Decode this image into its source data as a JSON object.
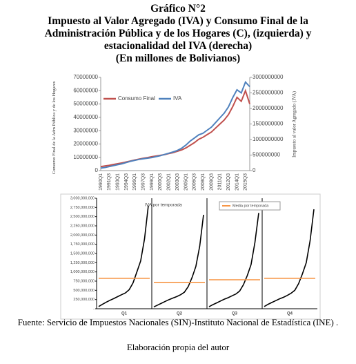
{
  "header": {
    "title": "Gráfico N°2",
    "subtitle": "Impuesto al Valor Agregado (IVA) y Consumo Final de la Administración Pública y de los Hogares (C), (izquierda) y estacionalidad del IVA (derecha)",
    "units": "(En millones de Bolivianos)"
  },
  "chart_data": [
    {
      "type": "line",
      "categories": [
        "1990Q1",
        null,
        "1991Q3",
        null,
        "1993Q1",
        null,
        "1994Q3",
        null,
        "1996Q1",
        null,
        "1997Q3",
        null,
        "1999Q1",
        null,
        "2000Q3",
        null,
        "2002Q1",
        null,
        "2003Q3",
        null,
        "2005Q1",
        null,
        "2006Q3",
        null,
        "2008Q1",
        null,
        "2009Q3",
        null,
        "2011Q1",
        null,
        "2012Q3",
        null,
        "2014Q1",
        null,
        "2015Q3",
        null
      ],
      "y_label": "Consumo Final de la Adm Pública y de los Hogares",
      "y2_label": "Impuesto al valor Agregado (IVA)",
      "ylim": [
        0,
        70000000
      ],
      "yticks": [
        0,
        10000000,
        20000000,
        30000000,
        40000000,
        50000000,
        60000000,
        70000000
      ],
      "y2lim": [
        0,
        3000000000
      ],
      "y2ticks": [
        0,
        500000000,
        1000000000,
        1500000000,
        2000000000,
        2500000000,
        3000000000
      ],
      "grid": false,
      "series": [
        {
          "name": "Consumo Final",
          "color": "#c0504d",
          "values": [
            3000000,
            3500000,
            4000000,
            4600000,
            5200000,
            5800000,
            6500000,
            7200000,
            8000000,
            8600000,
            9300000,
            9800000,
            10500000,
            11000000,
            11500000,
            12000000,
            12800000,
            13500000,
            14500000,
            15500000,
            17000000,
            19000000,
            21000000,
            23500000,
            25000000,
            27000000,
            29000000,
            32000000,
            35000000,
            38000000,
            42000000,
            48000000,
            55000000,
            52000000,
            60000000,
            50000000
          ]
        },
        {
          "name": "IVA",
          "color": "#4f81bd",
          "axis": "y2",
          "values": [
            80000000,
            100000000,
            130000000,
            160000000,
            190000000,
            220000000,
            260000000,
            300000000,
            330000000,
            360000000,
            380000000,
            400000000,
            420000000,
            450000000,
            480000000,
            520000000,
            560000000,
            600000000,
            650000000,
            720000000,
            820000000,
            950000000,
            1050000000,
            1150000000,
            1200000000,
            1300000000,
            1400000000,
            1550000000,
            1700000000,
            1850000000,
            2050000000,
            2350000000,
            2600000000,
            2500000000,
            2850000000,
            2700000000
          ]
        }
      ]
    },
    {
      "type": "seasonal",
      "categories": [
        "Q1",
        "Q2",
        "Q3",
        "Q4"
      ],
      "ylim": [
        0,
        3000000000
      ],
      "yticks": [
        {
          "value": 0,
          "label": "-"
        },
        {
          "value": 250000000,
          "label": "250,000,000"
        },
        {
          "value": 500000000,
          "label": "500,000,000"
        },
        {
          "value": 750000000,
          "label": "750,000,000"
        },
        {
          "value": 1000000000,
          "label": "1,000,000,000"
        },
        {
          "value": 1250000000,
          "label": "1,250,000,000"
        },
        {
          "value": 1500000000,
          "label": "1,500,000,000"
        },
        {
          "value": 1750000000,
          "label": "1,750,000,000"
        },
        {
          "value": 2000000000,
          "label": "2,000,000,000"
        },
        {
          "value": 2250000000,
          "label": "2,250,000,000"
        },
        {
          "value": 2500000000,
          "label": "2,500,000,000"
        },
        {
          "value": 2750000000,
          "label": "2,750,000,000"
        },
        {
          "value": 3000000000,
          "label": "3,000,000,000"
        }
      ],
      "series": [
        {
          "name": "IVA por temporada",
          "color": "#000000",
          "values": [
            [
              60000000,
              120000000,
              180000000,
              230000000,
              280000000,
              330000000,
              380000000,
              430000000,
              520000000,
              700000000,
              1000000000,
              1300000000,
              1900000000,
              2800000000
            ],
            [
              50000000,
              100000000,
              150000000,
              200000000,
              250000000,
              290000000,
              330000000,
              380000000,
              450000000,
              600000000,
              850000000,
              1150000000,
              1700000000,
              2550000000
            ],
            [
              55000000,
              110000000,
              160000000,
              210000000,
              260000000,
              300000000,
              350000000,
              400000000,
              480000000,
              650000000,
              900000000,
              1200000000,
              1800000000,
              2600000000
            ],
            [
              60000000,
              120000000,
              170000000,
              220000000,
              270000000,
              310000000,
              360000000,
              420000000,
              500000000,
              680000000,
              950000000,
              1250000000,
              1850000000,
              2700000000
            ]
          ]
        },
        {
          "name": "Media por temporada",
          "color": "#f79646",
          "values": [
            825000000,
            712000000,
            787000000,
            825000000
          ]
        }
      ]
    }
  ],
  "footer": {
    "source": "Fuente: Servicio de Impuestos Nacionales (SIN)-Instituto Nacional de Estadística (INE) .",
    "note": "Elaboración propia del autor"
  }
}
